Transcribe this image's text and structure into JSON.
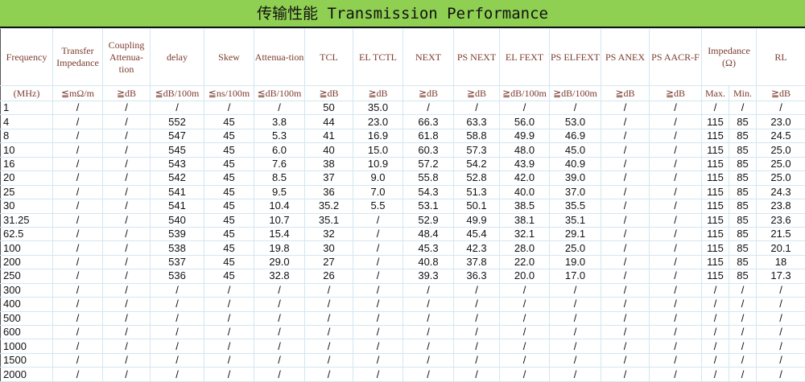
{
  "title": "传输性能 Transmission Performance",
  "columns": [
    {
      "name": "Frequency",
      "unit": "(MHz)"
    },
    {
      "name": "Transfer Impedance",
      "unit": "≦mΩ/m"
    },
    {
      "name": "Coupling Attenua-tion",
      "unit": "≧dB"
    },
    {
      "name": "delay",
      "unit": "≦dB/100m"
    },
    {
      "name": "Skew",
      "unit": "≦ns/100m"
    },
    {
      "name": "Attenua-tion",
      "unit": "≦dB/100m"
    },
    {
      "name": "TCL",
      "unit": "≧dB"
    },
    {
      "name": "EL TCTL",
      "unit": "≧dB"
    },
    {
      "name": "NEXT",
      "unit": "≧dB"
    },
    {
      "name": "PS NEXT",
      "unit": "≧dB"
    },
    {
      "name": "EL FEXT",
      "unit": "≧dB/100m"
    },
    {
      "name": "PS ELFEXT",
      "unit": "≧dB/100m"
    },
    {
      "name": "PS ANEX",
      "unit": "≧dB"
    },
    {
      "name": "PS AACR-F",
      "unit": "≧dB"
    },
    {
      "name": "Impedance (Ω)",
      "unit_max": "Max.",
      "unit_min": "Min."
    },
    {
      "name": "RL",
      "unit": "≧dB"
    }
  ],
  "rows": [
    [
      "1",
      "/",
      "/",
      "/",
      "/",
      "/",
      "50",
      "35.0",
      "/",
      "/",
      "/",
      "/",
      "/",
      "/",
      "/",
      "/",
      "/"
    ],
    [
      "4",
      "/",
      "/",
      "552",
      "45",
      "3.8",
      "44",
      "23.0",
      "66.3",
      "63.3",
      "56.0",
      "53.0",
      "/",
      "/",
      "115",
      "85",
      "23.0"
    ],
    [
      "8",
      "/",
      "/",
      "547",
      "45",
      "5.3",
      "41",
      "16.9",
      "61.8",
      "58.8",
      "49.9",
      "46.9",
      "/",
      "/",
      "115",
      "85",
      "24.5"
    ],
    [
      "10",
      "/",
      "/",
      "545",
      "45",
      "6.0",
      "40",
      "15.0",
      "60.3",
      "57.3",
      "48.0",
      "45.0",
      "/",
      "/",
      "115",
      "85",
      "25.0"
    ],
    [
      "16",
      "/",
      "/",
      "543",
      "45",
      "7.6",
      "38",
      "10.9",
      "57.2",
      "54.2",
      "43.9",
      "40.9",
      "/",
      "/",
      "115",
      "85",
      "25.0"
    ],
    [
      "20",
      "/",
      "/",
      "542",
      "45",
      "8.5",
      "37",
      "9.0",
      "55.8",
      "52.8",
      "42.0",
      "39.0",
      "/",
      "/",
      "115",
      "85",
      "25.0"
    ],
    [
      "25",
      "/",
      "/",
      "541",
      "45",
      "9.5",
      "36",
      "7.0",
      "54.3",
      "51.3",
      "40.0",
      "37.0",
      "/",
      "/",
      "115",
      "85",
      "24.3"
    ],
    [
      "30",
      "/",
      "/",
      "541",
      "45",
      "10.4",
      "35.2",
      "5.5",
      "53.1",
      "50.1",
      "38.5",
      "35.5",
      "/",
      "/",
      "115",
      "85",
      "23.8"
    ],
    [
      "31.25",
      "/",
      "/",
      "540",
      "45",
      "10.7",
      "35.1",
      "/",
      "52.9",
      "49.9",
      "38.1",
      "35.1",
      "/",
      "/",
      "115",
      "85",
      "23.6"
    ],
    [
      "62.5",
      "/",
      "/",
      "539",
      "45",
      "15.4",
      "32",
      "/",
      "48.4",
      "45.4",
      "32.1",
      "29.1",
      "/",
      "/",
      "115",
      "85",
      "21.5"
    ],
    [
      "100",
      "/",
      "/",
      "538",
      "45",
      "19.8",
      "30",
      "/",
      "45.3",
      "42.3",
      "28.0",
      "25.0",
      "/",
      "/",
      "115",
      "85",
      "20.1"
    ],
    [
      "200",
      "/",
      "/",
      "537",
      "45",
      "29.0",
      "27",
      "/",
      "40.8",
      "37.8",
      "22.0",
      "19.0",
      "/",
      "/",
      "115",
      "85",
      "18"
    ],
    [
      "250",
      "/",
      "/",
      "536",
      "45",
      "32.8",
      "26",
      "/",
      "39.3",
      "36.3",
      "20.0",
      "17.0",
      "/",
      "/",
      "115",
      "85",
      "17.3"
    ],
    [
      "300",
      "/",
      "/",
      "/",
      "/",
      "/",
      "/",
      "/",
      "/",
      "/",
      "/",
      "/",
      "/",
      "/",
      "/",
      "/",
      "/"
    ],
    [
      "400",
      "/",
      "/",
      "/",
      "/",
      "/",
      "/",
      "/",
      "/",
      "/",
      "/",
      "/",
      "/",
      "/",
      "/",
      "/",
      "/"
    ],
    [
      "500",
      "/",
      "/",
      "/",
      "/",
      "/",
      "/",
      "/",
      "/",
      "/",
      "/",
      "/",
      "/",
      "/",
      "/",
      "/",
      "/"
    ],
    [
      "600",
      "/",
      "/",
      "/",
      "/",
      "/",
      "/",
      "/",
      "/",
      "/",
      "/",
      "/",
      "/",
      "/",
      "/",
      "/",
      "/"
    ],
    [
      "1000",
      "/",
      "/",
      "/",
      "/",
      "/",
      "/",
      "/",
      "/",
      "/",
      "/",
      "/",
      "/",
      "/",
      "/",
      "/",
      "/"
    ],
    [
      "1500",
      "/",
      "/",
      "/",
      "/",
      "/",
      "/",
      "/",
      "/",
      "/",
      "/",
      "/",
      "/",
      "/",
      "/",
      "/",
      "/"
    ],
    [
      "2000",
      "/",
      "/",
      "/",
      "/",
      "/",
      "/",
      "/",
      "/",
      "/",
      "/",
      "/",
      "/",
      "/",
      "/",
      "/",
      "/"
    ]
  ],
  "colors": {
    "title_bar": "#8fd053",
    "header_text": "#7a3b2e",
    "grid": "#d3e6f1"
  }
}
